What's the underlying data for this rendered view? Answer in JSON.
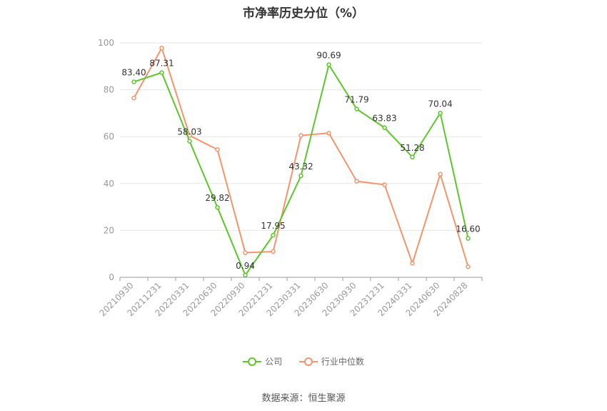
{
  "chart_data": {
    "type": "line",
    "title": "市净率历史分位（%）",
    "categories": [
      "20210930",
      "20211231",
      "20220331",
      "20220630",
      "20220930",
      "20221231",
      "20230331",
      "20230630",
      "20230930",
      "20231231",
      "20240331",
      "20240630",
      "20240828"
    ],
    "series": [
      {
        "name": "公司",
        "color": "#5cc72a",
        "values": [
          83.4,
          87.31,
          58.03,
          29.82,
          0.94,
          17.95,
          43.32,
          90.69,
          71.79,
          63.83,
          51.28,
          70.04,
          16.6
        ],
        "labels": [
          "83.40",
          "87.31",
          "58.03",
          "29.82",
          "0.94",
          "17.95",
          "43.32",
          "90.69",
          "71.79",
          "63.83",
          "51.28",
          "70.04",
          "16.60"
        ]
      },
      {
        "name": "行业中位数",
        "color": "#f5936a",
        "values": [
          76.5,
          97.8,
          60.5,
          54.5,
          10.5,
          11.0,
          60.5,
          61.5,
          41.0,
          39.5,
          6.0,
          44.0,
          4.5
        ]
      }
    ],
    "yticks": [
      "0",
      "20",
      "40",
      "60",
      "80",
      "100"
    ],
    "ylim": [
      0,
      100
    ],
    "grid": true,
    "legend_position": "bottom"
  },
  "source": "数据来源：恒生聚源"
}
